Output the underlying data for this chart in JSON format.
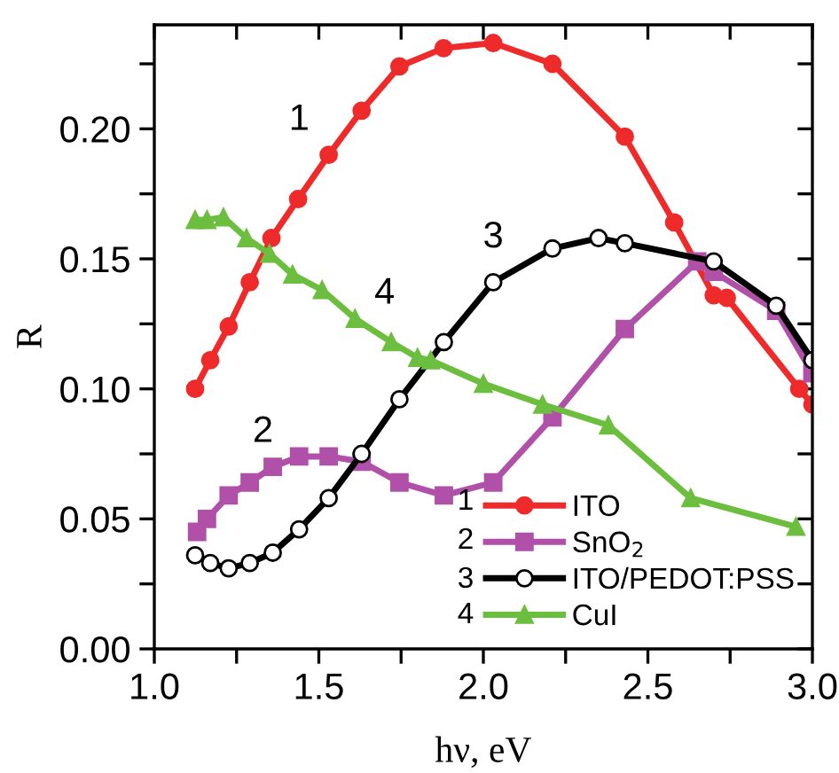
{
  "chart_data": {
    "type": "line",
    "xlabel": "hν, eV",
    "ylabel": "R",
    "xlim": [
      1.0,
      3.0
    ],
    "ylim": [
      0.0,
      0.24
    ],
    "xticks": [
      {
        "value": 1.0,
        "label": "1.0"
      },
      {
        "value": 1.25,
        "label": null
      },
      1.5,
      {
        "value": 1.75,
        "label": null
      },
      {
        "value": 2.0,
        "label": "2.0"
      },
      {
        "value": 2.25,
        "label": null
      },
      2.5,
      {
        "value": 2.75,
        "label": null
      },
      {
        "value": 3.0,
        "label": "3.0"
      }
    ],
    "yticks": [
      {
        "value": 0,
        "label": "0.00"
      },
      {
        "value": 0.025,
        "label": null
      },
      0.05,
      {
        "value": 0.075,
        "label": null
      },
      {
        "value": 0.1,
        "label": "0.10"
      },
      {
        "value": 0.125,
        "label": null
      },
      0.15,
      {
        "value": 0.175,
        "label": null
      },
      {
        "value": 0.2,
        "label": "0.20"
      },
      {
        "value": 0.225,
        "label": null
      }
    ],
    "legend": "bottom right",
    "grid": false,
    "series": [
      {
        "name": "ITO",
        "color": "#ee2a2a",
        "marker": "circle",
        "x": [
          1.124,
          1.17,
          1.226,
          1.29,
          1.356,
          1.437,
          1.53,
          1.63,
          1.745,
          1.879,
          2.03,
          2.21,
          2.43,
          2.58,
          2.7,
          2.74,
          2.96,
          3.0
        ],
        "values": [
          0.1,
          0.111,
          0.124,
          0.141,
          0.158,
          0.173,
          0.19,
          0.207,
          0.224,
          0.231,
          0.233,
          0.225,
          0.197,
          0.164,
          0.136,
          0.135,
          0.1,
          0.094
        ]
      },
      {
        "name": "SnO$_{2}$",
        "color": "#b050a8",
        "marker": "square",
        "x": [
          1.13,
          1.16,
          1.226,
          1.29,
          1.36,
          1.44,
          1.53,
          1.63,
          1.745,
          1.88,
          2.03,
          2.21,
          2.43,
          2.65,
          2.7,
          2.89,
          3.0
        ],
        "values": [
          0.045,
          0.05,
          0.059,
          0.064,
          0.07,
          0.074,
          0.074,
          0.072,
          0.064,
          0.059,
          0.064,
          0.089,
          0.123,
          0.149,
          0.145,
          0.13,
          0.106
        ]
      },
      {
        "name": "ITO/PEDOT:PSS",
        "color": "#000000",
        "marker": "open circle",
        "x": [
          1.124,
          1.17,
          1.226,
          1.29,
          1.36,
          1.44,
          1.53,
          1.63,
          1.745,
          1.88,
          2.03,
          2.21,
          2.35,
          2.43,
          2.7,
          2.89,
          3.0
        ],
        "values": [
          0.036,
          0.033,
          0.031,
          0.033,
          0.037,
          0.046,
          0.058,
          0.075,
          0.096,
          0.118,
          0.141,
          0.154,
          0.158,
          0.156,
          0.149,
          0.132,
          0.111
        ]
      },
      {
        "name": "CuI",
        "color": "#6cbf3e",
        "marker": "triangle",
        "x": [
          1.124,
          1.16,
          1.21,
          1.28,
          1.35,
          1.42,
          1.51,
          1.61,
          1.72,
          1.8,
          1.84,
          2.0,
          2.18,
          2.38,
          2.63,
          2.95
        ],
        "values": [
          0.165,
          0.165,
          0.166,
          0.158,
          0.152,
          0.144,
          0.138,
          0.127,
          0.118,
          0.112,
          0.111,
          0.102,
          0.094,
          0.086,
          0.058,
          0.047
        ]
      }
    ],
    "annotations": [
      "1",
      "2",
      "3",
      "4"
    ]
  }
}
